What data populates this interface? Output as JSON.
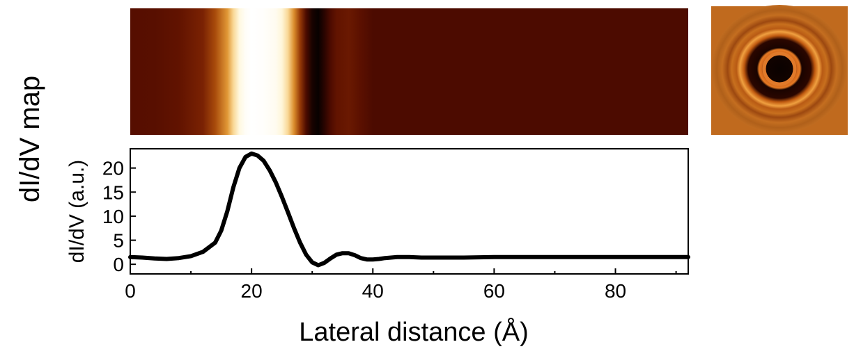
{
  "figure": {
    "side_label": "dI/dV map"
  },
  "map_strip": {
    "type": "heatmap",
    "colormap": [
      "#000000",
      "#3a0600",
      "#5c1000",
      "#8a2c04",
      "#c66a12",
      "#f0b24a",
      "#fff2c8",
      "#ffffff"
    ],
    "x_range": [
      0,
      92
    ],
    "intensity_profile": [
      [
        0,
        0.26
      ],
      [
        4,
        0.27
      ],
      [
        8,
        0.3
      ],
      [
        12,
        0.38
      ],
      [
        14,
        0.5
      ],
      [
        16,
        0.66
      ],
      [
        17,
        0.8
      ],
      [
        18,
        0.92
      ],
      [
        19,
        0.98
      ],
      [
        20,
        1.0
      ],
      [
        22,
        0.99
      ],
      [
        24,
        0.96
      ],
      [
        25,
        0.9
      ],
      [
        26,
        0.8
      ],
      [
        27,
        0.64
      ],
      [
        28,
        0.46
      ],
      [
        29,
        0.22
      ],
      [
        30,
        0.06
      ],
      [
        31,
        0.02
      ],
      [
        32,
        0.1
      ],
      [
        33,
        0.22
      ],
      [
        34,
        0.3
      ],
      [
        36,
        0.33
      ],
      [
        38,
        0.28
      ],
      [
        40,
        0.22
      ],
      [
        44,
        0.22
      ],
      [
        60,
        0.22
      ],
      [
        92,
        0.22
      ]
    ]
  },
  "map_inset": {
    "type": "heatmap",
    "description_colors": {
      "center": "#100300",
      "ring": "#e88a2a",
      "background": "#c86a18"
    }
  },
  "chart_data": {
    "type": "line",
    "title": "",
    "xlabel": "Lateral distance (Å)",
    "ylabel": "dI/dV (a.u.)",
    "xlim": [
      0,
      92
    ],
    "ylim": [
      -2,
      24
    ],
    "xticks": [
      0,
      20,
      40,
      60,
      80
    ],
    "yticks": [
      0,
      5,
      10,
      15,
      20
    ],
    "grid": false,
    "legend": "none",
    "series": [
      {
        "color": "#000000",
        "x": [
          0,
          2,
          4,
          6,
          8,
          10,
          12,
          14,
          15,
          16,
          17,
          18,
          19,
          20,
          21,
          22,
          23,
          24,
          25,
          26,
          27,
          28,
          29,
          30,
          31,
          32,
          33,
          34,
          35,
          36,
          37,
          38,
          39,
          40,
          41,
          42,
          44,
          46,
          48,
          50,
          55,
          60,
          65,
          70,
          75,
          80,
          85,
          92
        ],
        "y": [
          1.5,
          1.4,
          1.2,
          1.1,
          1.3,
          1.7,
          2.6,
          4.5,
          7.0,
          11.0,
          16.0,
          20.0,
          22.3,
          23.0,
          22.6,
          21.5,
          19.5,
          17.0,
          14.0,
          10.8,
          7.5,
          4.5,
          2.0,
          0.4,
          -0.2,
          0.3,
          1.2,
          2.0,
          2.3,
          2.3,
          1.9,
          1.3,
          1.0,
          1.0,
          1.1,
          1.3,
          1.5,
          1.5,
          1.4,
          1.4,
          1.4,
          1.5,
          1.5,
          1.5,
          1.5,
          1.5,
          1.5,
          1.5
        ]
      }
    ]
  }
}
